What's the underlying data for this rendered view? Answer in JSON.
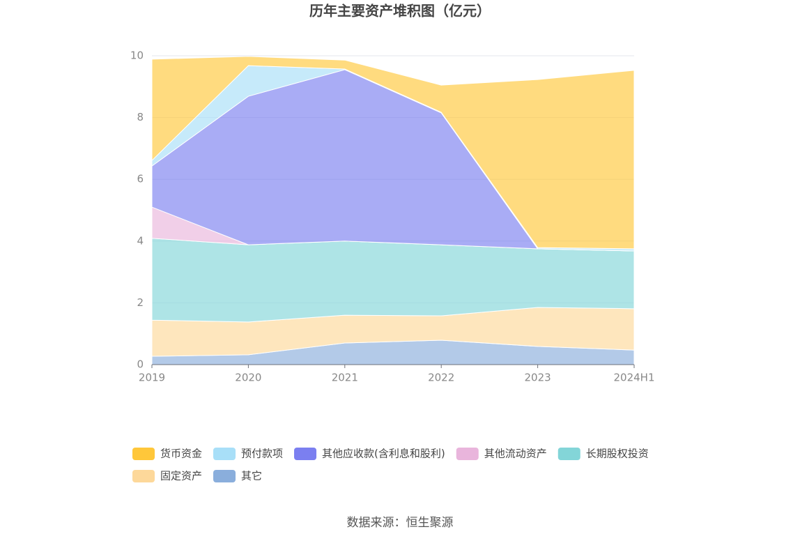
{
  "chart_data": {
    "type": "stacked-area",
    "title": "历年主要资产堆积图（亿元）",
    "categories": [
      "2019",
      "2020",
      "2021",
      "2022",
      "2023",
      "2024H1"
    ],
    "series": [
      {
        "name": "货币资金",
        "color": "#ffc73a",
        "values": [
          3.28,
          0.3,
          0.29,
          0.88,
          5.44,
          5.78
        ]
      },
      {
        "name": "预付款项",
        "color": "#a8dff8",
        "values": [
          0.18,
          0.99,
          0.02,
          0.02,
          0.04,
          0.07
        ]
      },
      {
        "name": "其他应收款(含利息和股利)",
        "color": "#7b7ff0",
        "values": [
          1.33,
          4.81,
          5.55,
          4.27,
          0,
          0
        ]
      },
      {
        "name": "其他流动资产",
        "color": "#e9b5dc",
        "values": [
          1.01,
          0,
          0,
          0,
          0,
          0
        ]
      },
      {
        "name": "长期股权投资",
        "color": "#83d5d8",
        "values": [
          2.65,
          2.5,
          2.4,
          2.3,
          1.9,
          1.87
        ]
      },
      {
        "name": "固定资产",
        "color": "#fdd89a",
        "values": [
          1.17,
          1.06,
          0.9,
          0.79,
          1.26,
          1.34
        ]
      },
      {
        "name": "其它",
        "color": "#8aaedc",
        "values": [
          0.27,
          0.32,
          0.7,
          0.79,
          0.59,
          0.47
        ]
      }
    ],
    "ylim": [
      0,
      10
    ],
    "yticks": [
      0,
      2,
      4,
      6,
      8,
      10
    ],
    "grid": true,
    "source": "数据来源：恒生聚源"
  }
}
